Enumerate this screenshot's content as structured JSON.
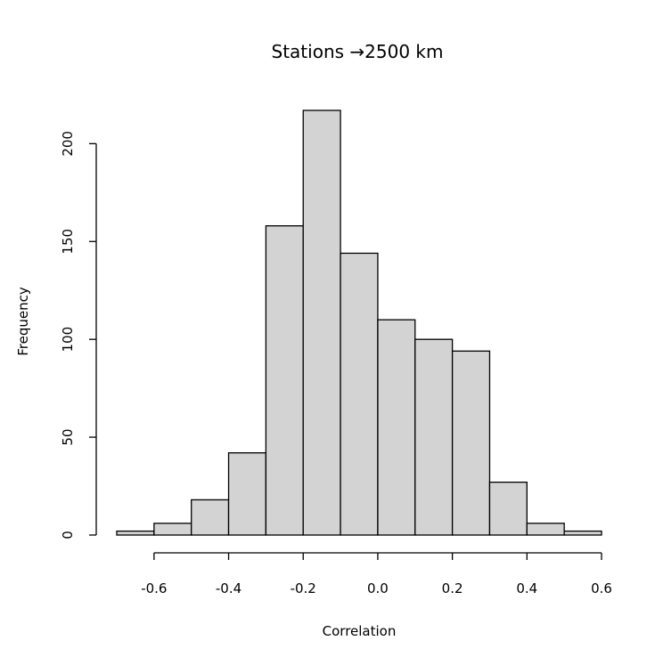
{
  "chart_data": {
    "type": "bar",
    "title": "Stations →2500 km",
    "xlabel": "Correlation",
    "ylabel": "Frequency",
    "bins": [
      {
        "from": -0.7,
        "to": -0.6,
        "count": 2
      },
      {
        "from": -0.6,
        "to": -0.5,
        "count": 6
      },
      {
        "from": -0.5,
        "to": -0.4,
        "count": 18
      },
      {
        "from": -0.4,
        "to": -0.3,
        "count": 42
      },
      {
        "from": -0.3,
        "to": -0.2,
        "count": 158
      },
      {
        "from": -0.2,
        "to": -0.1,
        "count": 217
      },
      {
        "from": -0.1,
        "to": 0.0,
        "count": 144
      },
      {
        "from": 0.0,
        "to": 0.1,
        "count": 110
      },
      {
        "from": 0.1,
        "to": 0.2,
        "count": 100
      },
      {
        "from": 0.2,
        "to": 0.3,
        "count": 94
      },
      {
        "from": 0.3,
        "to": 0.4,
        "count": 27
      },
      {
        "from": 0.4,
        "to": 0.5,
        "count": 6
      },
      {
        "from": 0.5,
        "to": 0.6,
        "count": 2
      }
    ],
    "x_ticks": [
      -0.6,
      -0.4,
      -0.2,
      0.0,
      0.2,
      0.4,
      0.6
    ],
    "x_tick_labels": [
      "-0.6",
      "-0.4",
      "-0.2",
      "0.0",
      "0.2",
      "0.4",
      "0.6"
    ],
    "y_ticks": [
      0,
      50,
      100,
      150,
      200
    ],
    "y_tick_labels": [
      "0",
      "50",
      "100",
      "150",
      "200"
    ],
    "xlim": [
      -0.7,
      0.6
    ],
    "ylim": [
      0,
      217
    ],
    "bar_color": "#d3d3d3",
    "grid": false
  }
}
